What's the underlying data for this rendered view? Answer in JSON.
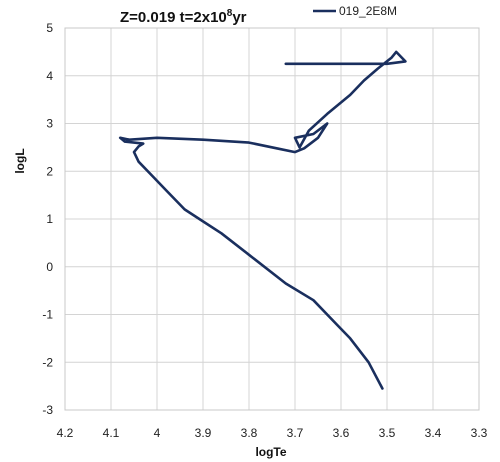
{
  "chart_data": {
    "type": "line",
    "title": {
      "prefix": "Z=0.019 t=2x10",
      "superscript": "8",
      "suffix": "yr"
    },
    "xlabel": "logTe",
    "ylabel": "logL",
    "xlim": [
      4.2,
      3.3
    ],
    "ylim": [
      -3,
      5
    ],
    "x_axis_reversed": true,
    "x_ticks": [
      4.2,
      4.1,
      4.0,
      3.9,
      3.8,
      3.7,
      3.6,
      3.5,
      3.4,
      3.3
    ],
    "x_tick_labels": [
      "4.2",
      "4.1",
      "4",
      "3.9",
      "3.8",
      "3.7",
      "3.6",
      "3.5",
      "3.4",
      "3.3"
    ],
    "y_ticks": [
      -3,
      -2,
      -1,
      0,
      1,
      2,
      3,
      4,
      5
    ],
    "y_tick_labels": [
      "-3",
      "-2",
      "-1",
      "0",
      "1",
      "2",
      "3",
      "4",
      "5"
    ],
    "grid": true,
    "legend_position": "top-right",
    "series": [
      {
        "name": "019_2E8M",
        "color": "#1a2f5e",
        "points": [
          [
            3.51,
            -2.55
          ],
          [
            3.54,
            -2.0
          ],
          [
            3.58,
            -1.5
          ],
          [
            3.61,
            -1.2
          ],
          [
            3.66,
            -0.7
          ],
          [
            3.72,
            -0.35
          ],
          [
            3.8,
            0.25
          ],
          [
            3.86,
            0.7
          ],
          [
            3.9,
            0.95
          ],
          [
            3.94,
            1.2
          ],
          [
            3.98,
            1.6
          ],
          [
            4.01,
            1.9
          ],
          [
            4.04,
            2.2
          ],
          [
            4.05,
            2.4
          ],
          [
            4.04,
            2.52
          ],
          [
            4.03,
            2.58
          ],
          [
            4.07,
            2.62
          ],
          [
            4.08,
            2.7
          ],
          [
            4.06,
            2.66
          ],
          [
            4.0,
            2.7
          ],
          [
            3.9,
            2.66
          ],
          [
            3.8,
            2.6
          ],
          [
            3.74,
            2.48
          ],
          [
            3.7,
            2.4
          ],
          [
            3.68,
            2.48
          ],
          [
            3.65,
            2.7
          ],
          [
            3.63,
            3.0
          ],
          [
            3.66,
            2.78
          ],
          [
            3.7,
            2.7
          ],
          [
            3.69,
            2.5
          ],
          [
            3.67,
            2.85
          ],
          [
            3.63,
            3.2
          ],
          [
            3.58,
            3.6
          ],
          [
            3.55,
            3.9
          ],
          [
            3.52,
            4.15
          ],
          [
            3.49,
            4.38
          ],
          [
            3.48,
            4.5
          ],
          [
            3.46,
            4.3
          ],
          [
            3.5,
            4.25
          ],
          [
            3.6,
            4.25
          ],
          [
            3.72,
            4.25
          ]
        ]
      }
    ]
  }
}
